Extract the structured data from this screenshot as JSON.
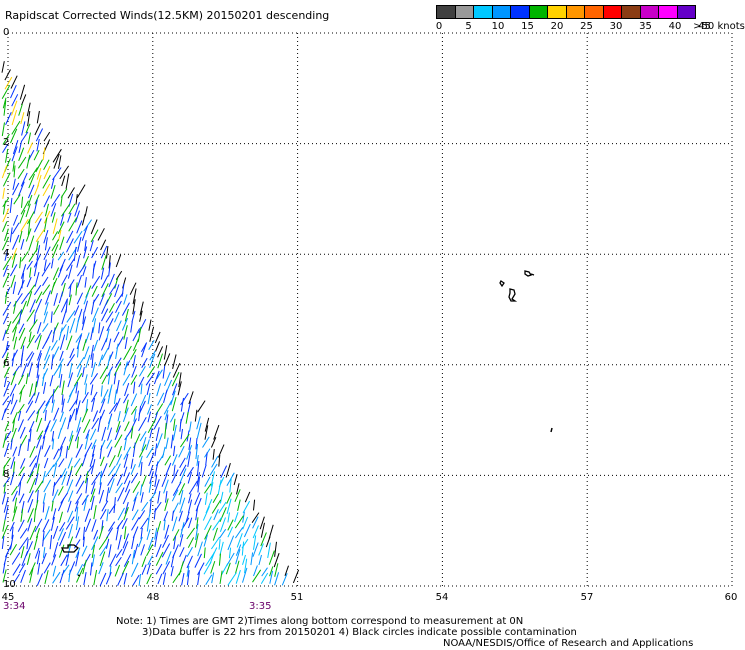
{
  "title": "Rapidscat Corrected Winds(12.5KM) 20150201 descending",
  "scale": {
    "colors": [
      "#404040",
      "#999999",
      "#00c8ff",
      "#0096ff",
      "#0032ff",
      "#00b400",
      "#ffd200",
      "#ff9600",
      "#ff6400",
      "#ff0000",
      "#8b3c14",
      "#c800c8",
      "#ff00ff",
      "#6400c8"
    ],
    "labels": [
      "0",
      "5",
      "10",
      "15",
      "20",
      "25",
      "30",
      "35",
      "40",
      "45"
    ],
    "unit_label": ">50 knots"
  },
  "axes": {
    "lat_labels": [
      "0",
      "2",
      "4",
      "6",
      "8",
      "10"
    ],
    "lon_labels": [
      "45",
      "48",
      "51",
      "54",
      "57",
      "60"
    ]
  },
  "times": {
    "left": "3:34",
    "middle": "3:35"
  },
  "notes": {
    "line1": "Note: 1) Times are GMT 2)Times along bottom correspond to measurement at 0N",
    "line2": "3)Data buffer is 22 hrs from 20150201 4) Black circles indicate possible contamination",
    "line3": "NOAA/NESDIS/Office of Research and Applications"
  }
}
